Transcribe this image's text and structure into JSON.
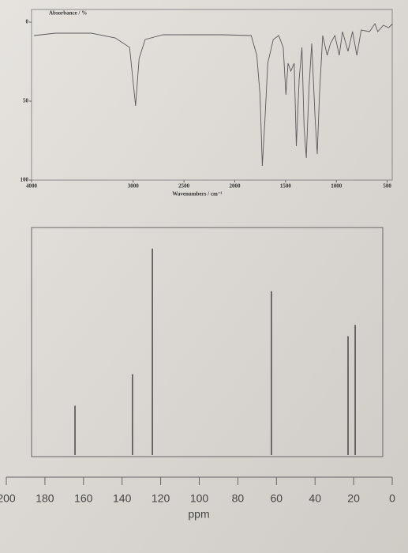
{
  "chart_data": [
    {
      "type": "line",
      "y_label": "Absorbance / %",
      "x_label": "Wavenumbers / cm⁻¹",
      "x": [
        3976,
        3765,
        3412,
        3176,
        3035,
        2976,
        2941,
        2882,
        2706,
        2353,
        2118,
        1838,
        1783,
        1751,
        1729,
        1702,
        1675,
        1621,
        1567,
        1523,
        1496,
        1475,
        1448,
        1415,
        1394,
        1366,
        1339,
        1318,
        1296,
        1269,
        1242,
        1209,
        1188,
        1166,
        1134,
        1090,
        1058,
        1014,
        971,
        939,
        885,
        841,
        798,
        755,
        673,
        620,
        592,
        538,
        484,
        446
      ],
      "values": [
        8.5,
        7,
        7,
        10,
        16,
        53,
        23,
        11,
        8,
        8,
        8,
        8.5,
        21,
        46,
        91,
        61,
        26,
        11,
        8.5,
        16,
        46,
        26,
        31,
        26,
        78.5,
        36,
        16,
        66,
        86,
        41,
        13.5,
        61,
        83.5,
        46,
        8.5,
        21,
        13.5,
        8.5,
        21,
        6,
        18.5,
        6,
        21,
        5,
        6,
        1,
        6,
        2,
        3.5,
        1
      ],
      "xlim": [
        4000,
        450
      ],
      "xticks": [
        4000,
        3000,
        2500,
        2000,
        1500,
        1000,
        500
      ],
      "ylim": [
        0,
        100
      ],
      "yticks": [
        0,
        50,
        100
      ],
      "y_inverted": true,
      "color": "#5a5a5a"
    },
    {
      "type": "stick",
      "x_label": "ppm",
      "x": [
        164.4,
        134.6,
        124.3,
        62.6,
        22.9,
        19.2
      ],
      "values": [
        22,
        36,
        92,
        73,
        53,
        58
      ],
      "xlim": [
        200,
        0
      ],
      "xticks": [
        200,
        180,
        160,
        140,
        120,
        100,
        80,
        60,
        40,
        20,
        0
      ],
      "ylim": [
        0,
        100
      ],
      "color": "#333333"
    }
  ]
}
